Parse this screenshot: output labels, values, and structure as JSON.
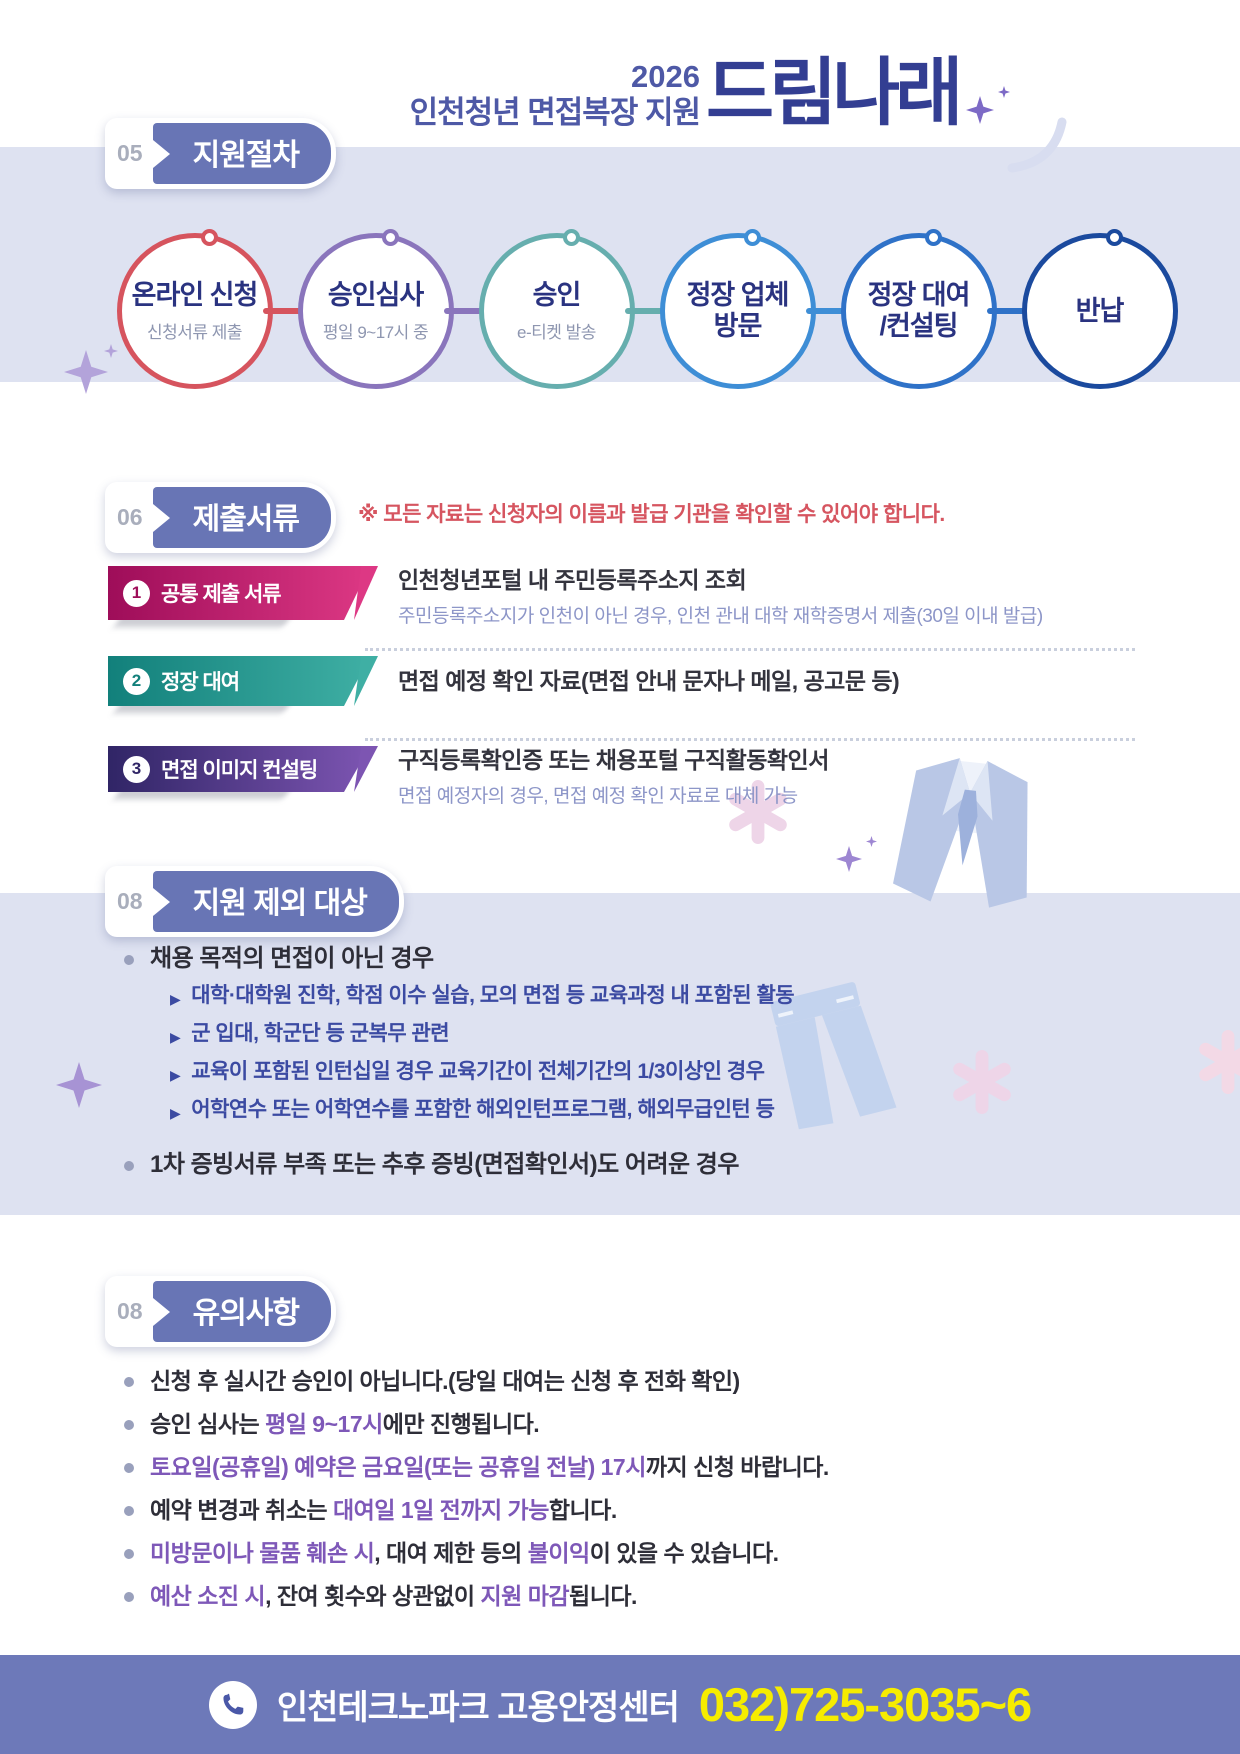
{
  "header": {
    "year": "2026",
    "subtitle": "인천청년 면접복장 지원",
    "logo": "드림나래"
  },
  "process": {
    "number": "05",
    "title": "지원절차",
    "steps": [
      {
        "label": "온라인 신청",
        "sub": "신청서류 제출",
        "color": "#d6545e"
      },
      {
        "label": "승인심사",
        "sub": "평일 9~17시 중",
        "color": "#8a75bc"
      },
      {
        "label": "승인",
        "sub": "e-티켓 발송",
        "color": "#66aeae"
      },
      {
        "label": "정장 업체\n방문",
        "sub": "",
        "color": "#3e8ed6"
      },
      {
        "label": "정장 대여\n/컨설팅",
        "sub": "",
        "color": "#2f72c8"
      },
      {
        "label": "반납",
        "sub": "",
        "color": "#1b4a9e"
      }
    ]
  },
  "documents": {
    "number": "06",
    "title": "제출서류",
    "note": "※ 모든 자료는 신청자의 이름과 발급 기관을 확인할 수 있어야 합니다.",
    "items": [
      {
        "num": "1",
        "badge": "공통 제출 서류",
        "title": "인천청년포털 내 주민등록주소지 조회",
        "sub": "주민등록주소지가 인천이 아닌 경우, 인천 관내 대학 재학증명서 제출(30일 이내 발급)",
        "gradient": [
          "#9e0d59",
          "#dd3884"
        ]
      },
      {
        "num": "2",
        "badge": "정장 대여",
        "title": "면접 예정 확인 자료(면접 안내 문자나 메일, 공고문 등)",
        "sub": "",
        "gradient": [
          "#12807b",
          "#3fafa4"
        ]
      },
      {
        "num": "3",
        "badge": "면접 이미지 컨설팅",
        "title": "구직등록확인증 또는 채용포털 구직활동확인서",
        "sub": "면접 예정자의 경우, 면접 예정 확인 자료로 대체 가능",
        "gradient": [
          "#302566",
          "#7d55b2"
        ]
      }
    ]
  },
  "exclusions": {
    "number": "08",
    "title": "지원 제외 대상",
    "bullets": [
      {
        "text": "채용 목적의 면접이 아닌 경우",
        "subitems": [
          "대학·대학원 진학, 학점 이수 실습, 모의 면접 등 교육과정 내 포함된 활동",
          "군 입대, 학군단 등 군복무 관련",
          "교육이 포함된 인턴십일 경우 교육기간이 전체기간의 1/3이상인 경우",
          "어학연수 또는 어학연수를 포함한 해외인턴프로그램, 해외무급인턴 등"
        ]
      },
      {
        "text": "1차 증빙서류 부족 또는 추후 증빙(면접확인서)도 어려운 경우",
        "subitems": []
      }
    ]
  },
  "notes": {
    "number": "08",
    "title": "유의사항",
    "highlight_color": "#7e58b8",
    "items": [
      [
        {
          "t": "신청 후 실시간 승인이 아닙니다.(당일 대여는 신청 후 전화 확인)",
          "hl": false
        }
      ],
      [
        {
          "t": "승인 심사는 ",
          "hl": false
        },
        {
          "t": "평일 9~17시",
          "hl": true
        },
        {
          "t": "에만 진행됩니다.",
          "hl": false
        }
      ],
      [
        {
          "t": "토요일(공휴일) 예약은 금요일(또는 공휴일 전날) 17시",
          "hl": true
        },
        {
          "t": "까지 신청 바랍니다.",
          "hl": false
        }
      ],
      [
        {
          "t": "예약 변경과 취소는 ",
          "hl": false
        },
        {
          "t": "대여일 1일 전까지 가능",
          "hl": true
        },
        {
          "t": "합니다.",
          "hl": false
        }
      ],
      [
        {
          "t": "미방문이나 물품 훼손 시",
          "hl": true
        },
        {
          "t": ", 대여 제한 등의 ",
          "hl": false
        },
        {
          "t": "불이익",
          "hl": true
        },
        {
          "t": "이 있을 수 있습니다.",
          "hl": false
        }
      ],
      [
        {
          "t": "예산 소진 시",
          "hl": true
        },
        {
          "t": ", 잔여 횟수와 상관없이 ",
          "hl": false
        },
        {
          "t": "지원 마감",
          "hl": true
        },
        {
          "t": "됩니다.",
          "hl": false
        }
      ]
    ]
  },
  "footer": {
    "org": "인천테크노파크 고용안정센터",
    "phone": "032)725-3035~6",
    "phone_icon": "phone-icon"
  },
  "colors": {
    "band": "#dee2f1",
    "ribbon": "#6875b5",
    "footer_band": "#6d79b9",
    "phone_yellow": "#f6ec00",
    "note_red": "#d65560"
  }
}
